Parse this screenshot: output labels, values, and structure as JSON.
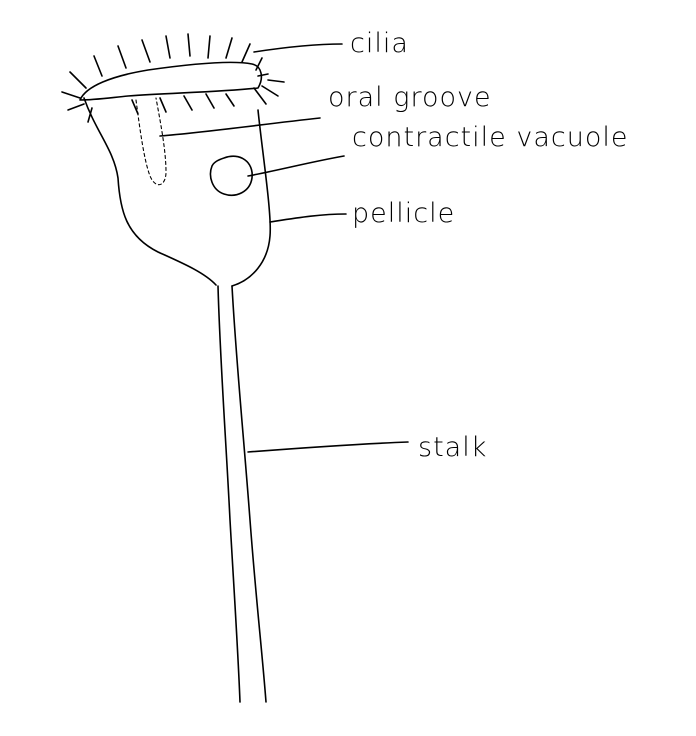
{
  "diagram": {
    "subject": "",
    "labels": {
      "cilia": "cilia",
      "oral_groove": "oral groove",
      "contractile_vacuole": "contractile vacuole",
      "pellicle": "pellicle",
      "stalk": "stalk"
    },
    "ink_color": "#000000",
    "background_color": "#ffffff"
  }
}
